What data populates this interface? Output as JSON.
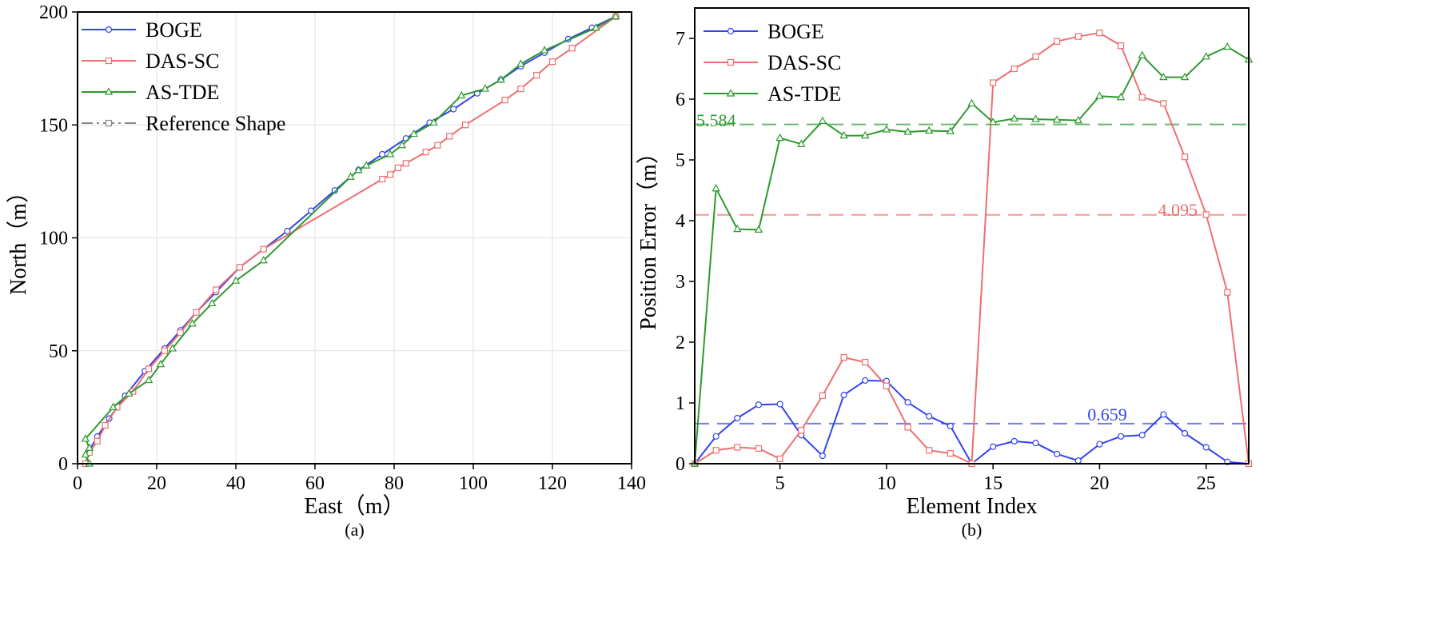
{
  "chart_data": [
    {
      "type": "line",
      "caption": "(a)",
      "xlabel": "East（m）",
      "ylabel": "North（m）",
      "xlim": [
        0,
        140
      ],
      "ylim": [
        0,
        200
      ],
      "xticks": [
        0,
        20,
        40,
        60,
        80,
        100,
        120,
        140
      ],
      "yticks": [
        0,
        50,
        100,
        150,
        200
      ],
      "grid": true,
      "legend": "top-left",
      "series": [
        {
          "name": "BOGE",
          "color": "#3344ee",
          "marker": "circle",
          "dash": "solid",
          "x": [
            2,
            3,
            5,
            8,
            12,
            17,
            22,
            26,
            30,
            35,
            41,
            47,
            53,
            59,
            65,
            71,
            77,
            83,
            89,
            95,
            101,
            107,
            112,
            118,
            124,
            130,
            136
          ],
          "y": [
            0,
            6,
            12,
            20,
            30,
            41,
            51,
            59,
            67,
            76,
            87,
            95,
            103,
            112,
            121,
            130,
            137,
            144,
            151,
            157,
            164,
            170,
            176,
            182,
            188,
            193,
            198
          ]
        },
        {
          "name": "DAS-SC",
          "color": "#ee6f6f",
          "marker": "square",
          "dash": "solid",
          "x": [
            2,
            3,
            5,
            7,
            10,
            14,
            18,
            22,
            26,
            30,
            35,
            41,
            47,
            77,
            79,
            81,
            83,
            88,
            91,
            94,
            98,
            108,
            112,
            116,
            120,
            125,
            136
          ],
          "y": [
            0,
            5,
            10,
            17,
            25,
            32,
            42,
            50,
            58,
            67,
            77,
            87,
            95,
            126,
            128,
            131,
            133,
            138,
            141,
            145,
            150,
            161,
            166,
            172,
            178,
            184,
            198
          ]
        },
        {
          "name": "AS-TDE",
          "color": "#2e9a2e",
          "marker": "triangle",
          "dash": "solid",
          "x": [
            3,
            2,
            3,
            2,
            9,
            13,
            18,
            21,
            24,
            29,
            34,
            40,
            47,
            69,
            71,
            73,
            79,
            82,
            85,
            90,
            97,
            103,
            107,
            112,
            118,
            131,
            136
          ],
          "y": [
            0,
            4,
            7,
            11,
            25,
            31,
            37,
            44,
            51,
            62,
            71,
            81,
            90,
            127,
            130,
            132,
            137,
            141,
            146,
            151,
            163,
            166,
            170,
            177,
            183,
            193,
            198
          ]
        },
        {
          "name": "Reference Shape",
          "color": "#888888",
          "marker": "square-open",
          "dash": "dashdot",
          "x": [],
          "y": []
        }
      ]
    },
    {
      "type": "line",
      "caption": "(b)",
      "xlabel": "Element Index",
      "ylabel": "Position Error（m）",
      "xlim": [
        1,
        27
      ],
      "ylim": [
        0,
        7.5
      ],
      "xticks": [
        5,
        10,
        15,
        20,
        25
      ],
      "yticks": [
        0,
        1,
        2,
        3,
        4,
        5,
        6,
        7
      ],
      "grid": false,
      "legend": "top-left",
      "x": [
        1,
        2,
        3,
        4,
        5,
        6,
        7,
        8,
        9,
        10,
        11,
        12,
        13,
        14,
        15,
        16,
        17,
        18,
        19,
        20,
        21,
        22,
        23,
        24,
        25,
        26,
        27
      ],
      "series": [
        {
          "name": "BOGE",
          "color": "#3344ee",
          "marker": "circle",
          "values": [
            0,
            0.45,
            0.75,
            0.97,
            0.98,
            0.47,
            0.13,
            1.13,
            1.37,
            1.36,
            1.01,
            0.78,
            0.62,
            0,
            0.28,
            0.37,
            0.34,
            0.16,
            0.05,
            0.32,
            0.45,
            0.47,
            0.81,
            0.5,
            0.27,
            0.03,
            0
          ],
          "mean": 0.659,
          "mean_label": "0.659"
        },
        {
          "name": "DAS-SC",
          "color": "#ee6f6f",
          "marker": "square",
          "values": [
            0,
            0.22,
            0.27,
            0.25,
            0.08,
            0.55,
            1.12,
            1.75,
            1.67,
            1.28,
            0.6,
            0.22,
            0.17,
            0,
            6.27,
            6.5,
            6.7,
            6.95,
            7.03,
            7.09,
            6.88,
            6.03,
            5.93,
            5.05,
            4.1,
            2.82,
            0
          ],
          "mean": 4.095,
          "mean_label": "4.095"
        },
        {
          "name": "AS-TDE",
          "color": "#2e9a2e",
          "marker": "triangle",
          "values": [
            0,
            4.53,
            3.86,
            3.85,
            5.36,
            5.26,
            5.64,
            5.4,
            5.4,
            5.5,
            5.46,
            5.48,
            5.47,
            5.93,
            5.62,
            5.68,
            5.67,
            5.66,
            5.65,
            6.05,
            6.03,
            6.72,
            6.36,
            6.36,
            6.7,
            6.86,
            6.65
          ],
          "mean": 5.584,
          "mean_label": "5.584"
        }
      ]
    }
  ]
}
